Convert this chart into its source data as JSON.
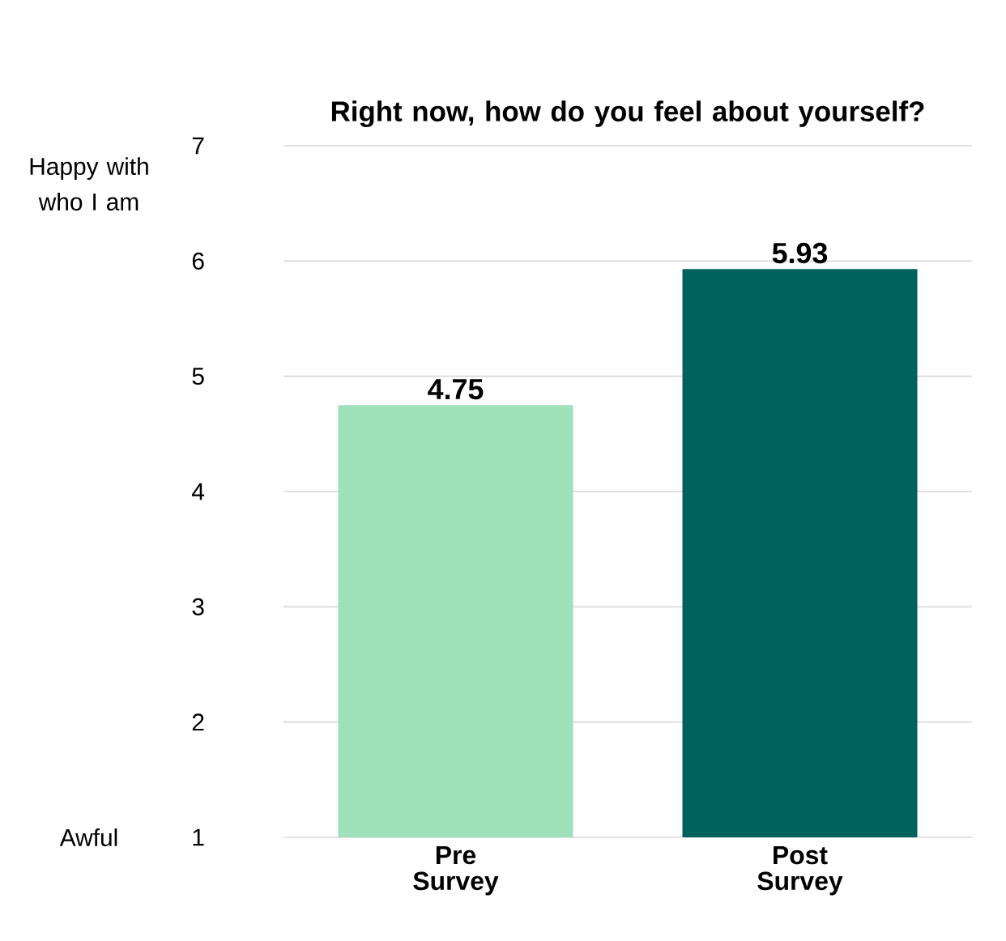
{
  "chart_data": {
    "type": "bar",
    "title": "Right now, how do you feel about yourself?",
    "categories": [
      "Pre Survey",
      "Post Survey"
    ],
    "values": [
      4.75,
      5.93
    ],
    "colors": [
      "#9de0b9",
      "#00625d"
    ],
    "ylim": [
      1,
      7
    ],
    "yticks": [
      1,
      2,
      3,
      4,
      5,
      6,
      7
    ],
    "grid": "y",
    "data_labels": true,
    "annotations": [
      "Happy with who I am",
      "Awful"
    ]
  }
}
